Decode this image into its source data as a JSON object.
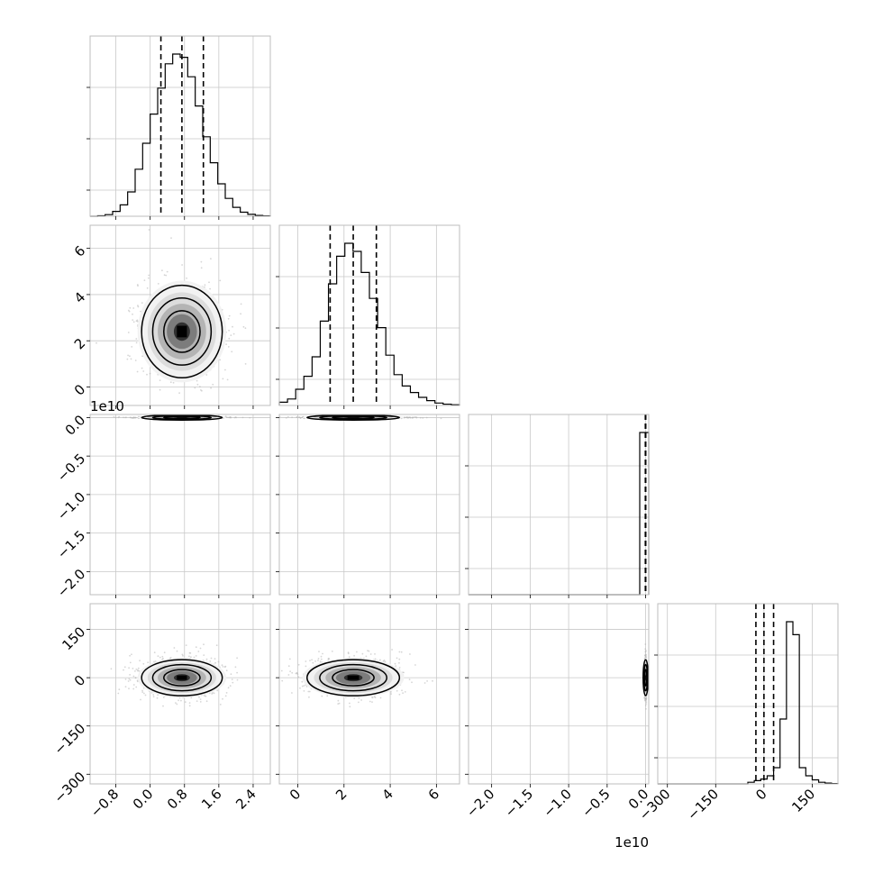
{
  "chart_data": {
    "type": "corner",
    "n_params": 4,
    "grid": true,
    "params": [
      {
        "range": [
          -1.4,
          2.8
        ],
        "ticks": [
          -0.8,
          0.0,
          0.8,
          1.6,
          2.4
        ],
        "tick_labels": [
          "−0.8",
          "0.0",
          "0.8",
          "1.6",
          "2.4"
        ],
        "offset_text": "",
        "hist_density": [
          0.0,
          0.003,
          0.01,
          0.03,
          0.07,
          0.15,
          0.29,
          0.45,
          0.63,
          0.79,
          0.94,
          1.0,
          0.98,
          0.86,
          0.68,
          0.49,
          0.33,
          0.2,
          0.11,
          0.055,
          0.025,
          0.012,
          0.005,
          0.002
        ],
        "quantiles": [
          0.25,
          0.74,
          1.24
        ],
        "mean": 0.74,
        "std": 0.47
      },
      {
        "range": [
          -0.8,
          7.0
        ],
        "ticks": [
          0,
          2,
          4,
          6
        ],
        "tick_labels": [
          "0",
          "2",
          "4",
          "6"
        ],
        "offset_text": "",
        "hist_density": [
          0.02,
          0.04,
          0.1,
          0.18,
          0.3,
          0.52,
          0.75,
          0.92,
          1.0,
          0.95,
          0.82,
          0.66,
          0.48,
          0.31,
          0.19,
          0.12,
          0.08,
          0.05,
          0.03,
          0.015,
          0.008,
          0.004
        ],
        "quantiles": [
          1.4,
          2.4,
          3.4
        ],
        "mean": 2.4,
        "std": 1.0
      },
      {
        "range": [
          -2.3,
          0.04
        ],
        "ticks": [
          0.0,
          -0.5,
          -1.0,
          -1.5,
          -2.0
        ],
        "tick_labels": [
          "0.0",
          "−0.5",
          "−1.0",
          "−1.5",
          "−2.0"
        ],
        "offset_text": "1e10",
        "hist_density": [
          0.0,
          0.0,
          0.0,
          0.0,
          0.0,
          0.0,
          0.0,
          0.0,
          0.0,
          0.0,
          0.0,
          0.0,
          0.0,
          0.0,
          0.0,
          0.0,
          0.0,
          0.0,
          0.0,
          1.0
        ],
        "quantiles": [
          -0.004,
          0.0,
          0.0
        ],
        "mean": 0.0,
        "std": 0.005
      },
      {
        "range": [
          -330,
          230
        ],
        "ticks": [
          -300,
          -150,
          0,
          150
        ],
        "tick_labels": [
          "−300",
          "−150",
          "0",
          "150"
        ],
        "offset_text": "",
        "hist_density": [
          0.0,
          0.0,
          0.0,
          0.0,
          0.0,
          0.0,
          0.0,
          0.0,
          0.0,
          0.0,
          0.0,
          0.0,
          0.0,
          0.0,
          0.01,
          0.02,
          0.03,
          0.05,
          0.1,
          0.4,
          1.0,
          0.92,
          0.1,
          0.05,
          0.025,
          0.01,
          0.005,
          0.002
        ],
        "quantiles": [
          -25,
          0,
          30
        ],
        "mean": 0,
        "std": 28
      }
    ],
    "pairs": [
      {
        "x": 0,
        "y": 1,
        "center": [
          0.74,
          2.4
        ],
        "spread": [
          0.47,
          1.0
        ]
      },
      {
        "x": 0,
        "y": 2,
        "center": [
          0.74,
          0.0
        ],
        "spread": [
          0.47,
          0.005
        ]
      },
      {
        "x": 1,
        "y": 2,
        "center": [
          2.4,
          0.0
        ],
        "spread": [
          1.0,
          0.005
        ]
      },
      {
        "x": 0,
        "y": 3,
        "center": [
          0.74,
          0.0
        ],
        "spread": [
          0.47,
          28
        ]
      },
      {
        "x": 1,
        "y": 3,
        "center": [
          2.4,
          0.0
        ],
        "spread": [
          1.0,
          28
        ]
      },
      {
        "x": 2,
        "y": 3,
        "center": [
          0.0,
          0.0
        ],
        "spread": [
          0.005,
          28
        ]
      }
    ],
    "colors": {
      "hist": "#000000",
      "contour": "#000000",
      "scatter": "#b4b4b4",
      "grid": "#c8c8c8",
      "frame": "#bcbcbc"
    }
  }
}
